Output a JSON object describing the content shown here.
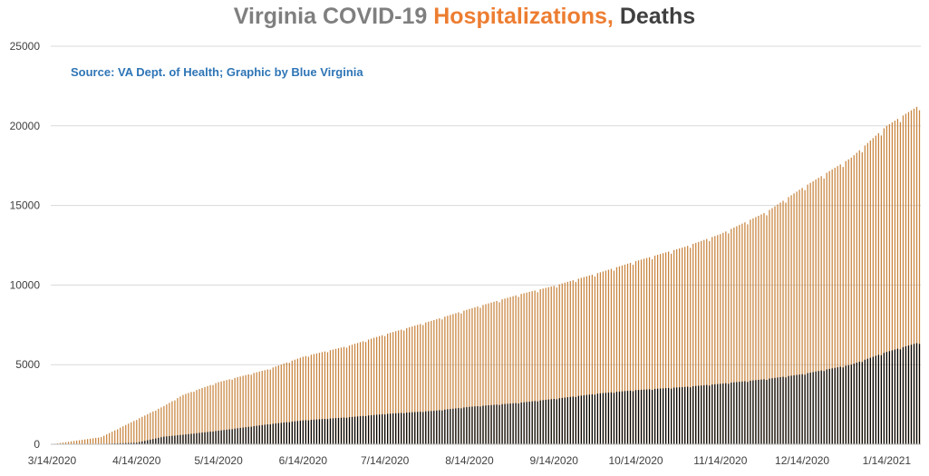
{
  "title": {
    "part1": "Virginia COVID-19 ",
    "part2": "Hospitalizations,",
    "part3": " Deaths"
  },
  "source_note": "Source: VA Dept. of Health; Graphic by Blue Virginia",
  "colors": {
    "title_gray": "#7f7f7f",
    "title_orange": "#ed7d31",
    "title_dark": "#404040",
    "source_blue": "#2e75b6",
    "hospitalizations_bar": "#c8843e",
    "deaths_bar": "#000000",
    "gridline": "#d9d9d9",
    "axis_text": "#404040"
  },
  "chart_data": {
    "type": "bar",
    "title": "Virginia COVID-19 Hospitalizations, Deaths",
    "ylim": [
      0,
      25000
    ],
    "yticks": [
      0,
      5000,
      10000,
      15000,
      20000,
      25000
    ],
    "xtick_labels": [
      "3/14/2020",
      "4/14/2020",
      "5/14/2020",
      "6/14/2020",
      "7/14/2020",
      "8/14/2020",
      "9/14/2020",
      "10/14/2020",
      "11/14/2020",
      "12/14/2020",
      "1/14/2021"
    ],
    "x_start": "3/14/2020",
    "x_end": "1/26/2021",
    "grid": true,
    "legend": "none",
    "series": [
      {
        "key": "hospitalizations",
        "anchor_dates": [
          "3/14/2020",
          "4/1/2020",
          "4/14/2020",
          "4/24/2020",
          "5/1/2020",
          "5/14/2020",
          "6/1/2020",
          "6/14/2020",
          "7/1/2020",
          "7/14/2020",
          "8/1/2020",
          "8/14/2020",
          "9/1/2020",
          "9/14/2020",
          "10/1/2020",
          "10/14/2020",
          "11/1/2020",
          "11/14/2020",
          "12/1/2020",
          "12/14/2020",
          "1/1/2021",
          "1/14/2021",
          "1/26/2021"
        ],
        "anchor_values": [
          10,
          450,
          1550,
          2400,
          3100,
          3900,
          4700,
          5500,
          6200,
          6900,
          7800,
          8500,
          9400,
          9950,
          10800,
          11500,
          12400,
          13200,
          14600,
          16100,
          18000,
          20000,
          21300
        ]
      },
      {
        "key": "deaths",
        "anchor_dates": [
          "3/14/2020",
          "4/1/2020",
          "4/14/2020",
          "4/24/2020",
          "5/1/2020",
          "5/14/2020",
          "6/1/2020",
          "6/14/2020",
          "7/1/2020",
          "7/14/2020",
          "8/1/2020",
          "8/14/2020",
          "9/1/2020",
          "9/14/2020",
          "10/1/2020",
          "10/14/2020",
          "11/1/2020",
          "11/14/2020",
          "12/1/2020",
          "12/14/2020",
          "1/1/2021",
          "1/14/2021",
          "1/26/2021"
        ],
        "anchor_values": [
          0,
          20,
          100,
          480,
          600,
          850,
          1250,
          1500,
          1700,
          1900,
          2100,
          2350,
          2600,
          2850,
          3200,
          3400,
          3600,
          3800,
          4100,
          4400,
          5000,
          5800,
          6400
        ]
      }
    ]
  }
}
